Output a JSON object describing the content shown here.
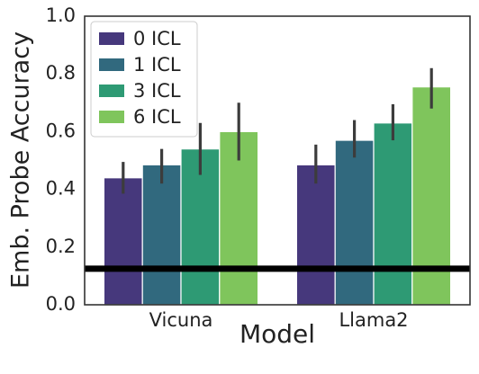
{
  "chart_data": {
    "type": "bar",
    "title": "",
    "xlabel": "Model",
    "ylabel": "Emb. Probe Accuracy",
    "categories": [
      "Vicuna",
      "Llama2"
    ],
    "ylim": [
      0.0,
      1.0
    ],
    "yticks": [
      "0.0",
      "0.2",
      "0.4",
      "0.6",
      "0.8",
      "1.0"
    ],
    "grid": false,
    "legend_position": "top-left",
    "series": [
      {
        "name": "0 ICL",
        "color": "#46387c",
        "values": [
          0.44,
          0.485
        ],
        "err_low": [
          0.385,
          0.42
        ],
        "err_high": [
          0.495,
          0.555
        ]
      },
      {
        "name": "1 ICL",
        "color": "#31697e",
        "values": [
          0.485,
          0.57
        ],
        "err_low": [
          0.42,
          0.51
        ],
        "err_high": [
          0.54,
          0.64
        ]
      },
      {
        "name": "3 ICL",
        "color": "#2e9a74",
        "values": [
          0.54,
          0.63
        ],
        "err_low": [
          0.45,
          0.57
        ],
        "err_high": [
          0.63,
          0.695
        ]
      },
      {
        "name": "6 ICL",
        "color": "#7fc55c",
        "values": [
          0.6,
          0.755
        ],
        "err_low": [
          0.5,
          0.68
        ],
        "err_high": [
          0.7,
          0.82
        ]
      }
    ],
    "baseline": {
      "value": 0.125,
      "color": "#000000"
    }
  }
}
